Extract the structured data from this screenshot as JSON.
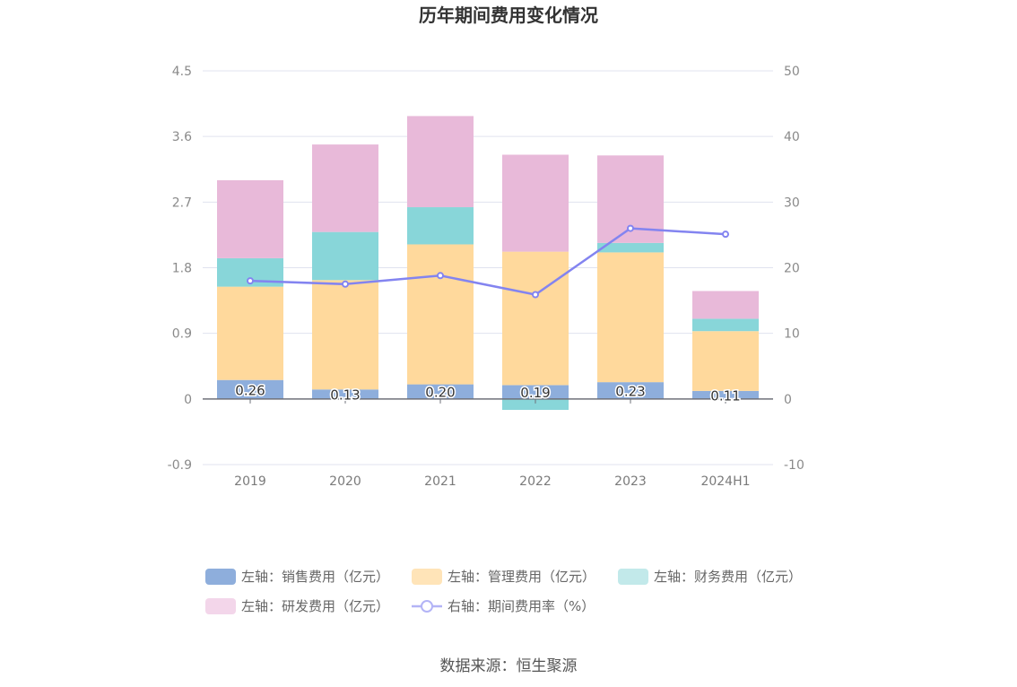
{
  "chart_data": {
    "type": "bar",
    "title": "历年期间费用变化情况",
    "categories": [
      "2019",
      "2020",
      "2021",
      "2022",
      "2023",
      "2024H1"
    ],
    "left_axis": {
      "min": -0.9,
      "max": 4.5,
      "ticks": [
        "-0.9",
        "0",
        "0.9",
        "1.8",
        "2.7",
        "3.6",
        "4.5"
      ]
    },
    "right_axis": {
      "min": -10,
      "max": 50,
      "ticks": [
        "-10",
        "0",
        "10",
        "20",
        "30",
        "40",
        "50"
      ]
    },
    "series": [
      {
        "name": "左轴：销售费用（亿元）",
        "kind": "bar",
        "axis": "left",
        "color": "#8eaedc",
        "values": [
          0.26,
          0.13,
          0.2,
          0.19,
          0.23,
          0.11
        ],
        "labels": [
          "0.26",
          "0.13",
          "0.20",
          "0.19",
          "0.23",
          "0.11"
        ]
      },
      {
        "name": "左轴：管理费用（亿元）",
        "kind": "bar",
        "axis": "left",
        "color": "#ffd99c",
        "values": [
          1.28,
          1.5,
          1.92,
          1.83,
          1.78,
          0.82
        ]
      },
      {
        "name": "左轴：财务费用（亿元）",
        "kind": "bar",
        "axis": "left",
        "color": "#88d6d9",
        "values": [
          0.39,
          0.66,
          0.51,
          -0.15,
          0.13,
          0.17
        ]
      },
      {
        "name": "左轴：研发费用（亿元）",
        "kind": "bar",
        "axis": "left",
        "color": "#e8b9d9",
        "values": [
          1.07,
          1.2,
          1.25,
          1.33,
          1.2,
          0.38
        ]
      },
      {
        "name": "右轴：期间费用率（%）",
        "kind": "line",
        "axis": "right",
        "color": "#8384f0",
        "values": [
          18.0,
          17.5,
          18.8,
          15.9,
          26.0,
          25.1
        ]
      }
    ],
    "legend_position": "bottom",
    "grid": true
  },
  "source": "数据来源：恒生聚源"
}
